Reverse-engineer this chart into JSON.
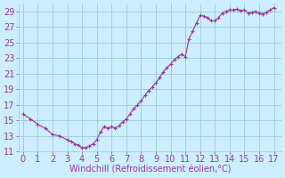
{
  "x": [
    0,
    0.5,
    1,
    1.5,
    2,
    2.5,
    3,
    3.25,
    3.5,
    3.75,
    4,
    4.25,
    4.5,
    4.75,
    5,
    5.25,
    5.5,
    5.75,
    6,
    6.25,
    6.5,
    6.75,
    7,
    7.25,
    7.5,
    7.75,
    8,
    8.25,
    8.5,
    8.75,
    9,
    9.25,
    9.5,
    9.75,
    10,
    10.25,
    10.5,
    10.75,
    11,
    11.25,
    11.5,
    11.75,
    12,
    12.25,
    12.5,
    12.75,
    13,
    13.25,
    13.5,
    13.75,
    14,
    14.25,
    14.5,
    14.75,
    15,
    15.25,
    15.5,
    15.75,
    16,
    16.25,
    16.5,
    16.75,
    17
  ],
  "y": [
    15.8,
    15.2,
    14.5,
    14.0,
    13.2,
    13.0,
    12.5,
    12.3,
    12.0,
    11.8,
    11.5,
    11.5,
    11.7,
    12.0,
    12.5,
    13.5,
    14.2,
    14.0,
    14.2,
    14.0,
    14.3,
    14.8,
    15.2,
    15.8,
    16.5,
    17.0,
    17.5,
    18.2,
    18.8,
    19.3,
    19.8,
    20.5,
    21.2,
    21.8,
    22.2,
    22.8,
    23.2,
    23.5,
    23.2,
    25.5,
    26.5,
    27.5,
    28.5,
    28.4,
    28.2,
    27.8,
    27.8,
    28.2,
    28.8,
    29.0,
    29.2,
    29.2,
    29.3,
    29.1,
    29.2,
    28.8,
    28.9,
    29.0,
    28.8,
    28.7,
    28.9,
    29.2,
    29.5
  ],
  "line_color": "#993399",
  "marker": "+",
  "marker_size": 3,
  "bg_color": "#cceeff",
  "grid_color": "#99cccc",
  "xlabel": "Windchill (Refroidissement éolien,°C)",
  "xlabel_color": "#993399",
  "xlabel_fontsize": 7,
  "tick_color": "#993399",
  "tick_fontsize": 7,
  "xlim": [
    -0.3,
    17.5
  ],
  "ylim": [
    11,
    30
  ],
  "yticks": [
    11,
    13,
    15,
    17,
    19,
    21,
    23,
    25,
    27,
    29
  ],
  "xticks": [
    0,
    1,
    2,
    3,
    4,
    5,
    6,
    7,
    8,
    9,
    10,
    11,
    12,
    13,
    14,
    15,
    16,
    17
  ]
}
